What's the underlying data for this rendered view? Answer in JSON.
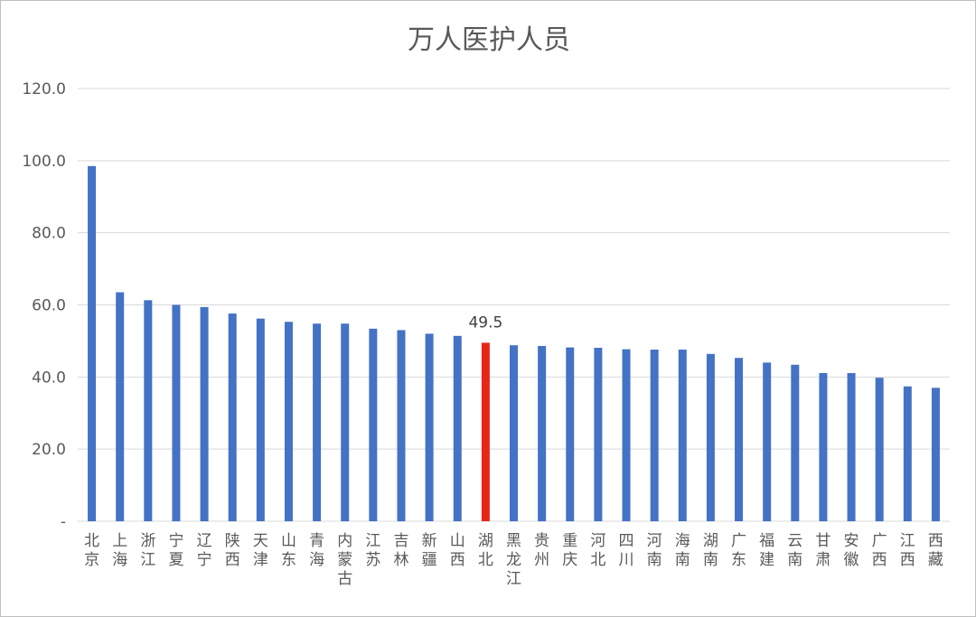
{
  "chart_data": {
    "type": "bar",
    "title": "万人医护人员",
    "xlabel": "",
    "ylabel": "",
    "ylim": [
      0,
      120
    ],
    "y_ticks": [
      "-",
      "20.0",
      "40.0",
      "60.0",
      "80.0",
      "100.0",
      "120.0"
    ],
    "grid": true,
    "legend": "none",
    "categories": [
      "北京",
      "上海",
      "浙江",
      "宁夏",
      "辽宁",
      "陕西",
      "天津",
      "山东",
      "青海",
      "内蒙古",
      "江苏",
      "吉林",
      "新疆",
      "山西",
      "湖北",
      "黑龙江",
      "贵州",
      "重庆",
      "河北",
      "四川",
      "河南",
      "海南",
      "湖南",
      "广东",
      "福建",
      "云南",
      "甘肃",
      "安徽",
      "广西",
      "江西",
      "西藏"
    ],
    "values": [
      98.5,
      63.5,
      61.3,
      60.0,
      59.4,
      57.6,
      56.2,
      55.3,
      54.8,
      54.8,
      53.4,
      53.0,
      52.0,
      51.4,
      49.5,
      48.8,
      48.6,
      48.2,
      48.1,
      47.7,
      47.6,
      47.6,
      46.4,
      45.3,
      44.0,
      43.4,
      41.1,
      41.1,
      39.8,
      37.4,
      37.0
    ],
    "highlight": {
      "category": "湖北",
      "value": 49.5,
      "label": "49.5"
    },
    "colors": {
      "bar": "#4472c4",
      "highlight": "#e8251b",
      "grid": "#d9d9d9",
      "text": "#595959"
    }
  }
}
